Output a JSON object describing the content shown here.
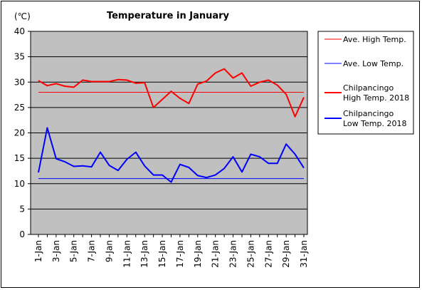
{
  "chart_data": {
    "type": "line",
    "title": "Temperature in January",
    "ylabel": "(℃)",
    "ylim": [
      0,
      40
    ],
    "yticks": [
      0,
      5,
      10,
      15,
      20,
      25,
      30,
      35,
      40
    ],
    "x": [
      "1-Jan",
      "2-Jan",
      "3-Jan",
      "4-Jan",
      "5-Jan",
      "6-Jan",
      "7-Jan",
      "8-Jan",
      "9-Jan",
      "10-Jan",
      "11-Jan",
      "12-Jan",
      "13-Jan",
      "14-Jan",
      "15-Jan",
      "16-Jan",
      "17-Jan",
      "18-Jan",
      "19-Jan",
      "20-Jan",
      "21-Jan",
      "22-Jan",
      "23-Jan",
      "24-Jan",
      "25-Jan",
      "26-Jan",
      "27-Jan",
      "28-Jan",
      "29-Jan",
      "30-Jan",
      "31-Jan"
    ],
    "xtick_labels": [
      "1-Jan",
      "3-Jan",
      "5-Jan",
      "7-Jan",
      "9-Jan",
      "11-Jan",
      "13-Jan",
      "15-Jan",
      "17-Jan",
      "19-Jan",
      "21-Jan",
      "23-Jan",
      "25-Jan",
      "27-Jan",
      "29-Jan",
      "31-Jan"
    ],
    "grid": "horizontal",
    "legend_position": "right",
    "plot_background": "#c0c0c0",
    "series": [
      {
        "name": "Ave. High Temp.",
        "color": "#ff0000",
        "style": "thin",
        "values": [
          28,
          28,
          28,
          28,
          28,
          28,
          28,
          28,
          28,
          28,
          28,
          28,
          28,
          28,
          28,
          28,
          28,
          28,
          28,
          28,
          28,
          28,
          28,
          28,
          28,
          28,
          28,
          28,
          28,
          28,
          28
        ]
      },
      {
        "name": "Ave. Low Temp.",
        "color": "#0000ff",
        "style": "thin",
        "values": [
          11,
          11,
          11,
          11,
          11,
          11,
          11,
          11,
          11,
          11,
          11,
          11,
          11,
          11,
          11,
          11,
          11,
          11,
          11,
          11,
          11,
          11,
          11,
          11,
          11,
          11,
          11,
          11,
          11,
          11,
          11
        ]
      },
      {
        "name": "Chilpancingo High Temp. 2018",
        "legend_lines": [
          "Chilpancingo",
          "High Temp. 2018"
        ],
        "color": "#ff0000",
        "style": "thick",
        "values": [
          30.3,
          29.3,
          29.7,
          29.2,
          29.0,
          30.4,
          30.1,
          30.1,
          30.1,
          30.5,
          30.4,
          29.8,
          29.9,
          25.0,
          26.6,
          28.2,
          26.8,
          25.8,
          29.6,
          30.2,
          31.8,
          32.6,
          30.8,
          31.8,
          29.2,
          30.0,
          30.4,
          29.4,
          27.6,
          23.2,
          27.0
        ]
      },
      {
        "name": "Chilpancingo Low Temp. 2018",
        "legend_lines": [
          "Chilpancingo",
          "Low Temp. 2018"
        ],
        "color": "#0000ff",
        "style": "thick",
        "values": [
          12.2,
          21.0,
          14.9,
          14.3,
          13.4,
          13.5,
          13.3,
          16.2,
          13.6,
          12.6,
          14.8,
          16.2,
          13.5,
          11.7,
          11.7,
          10.3,
          13.8,
          13.2,
          11.6,
          11.2,
          11.7,
          13.0,
          15.3,
          12.3,
          15.8,
          15.3,
          14.0,
          14.0,
          17.8,
          15.8,
          13.1
        ]
      }
    ]
  }
}
